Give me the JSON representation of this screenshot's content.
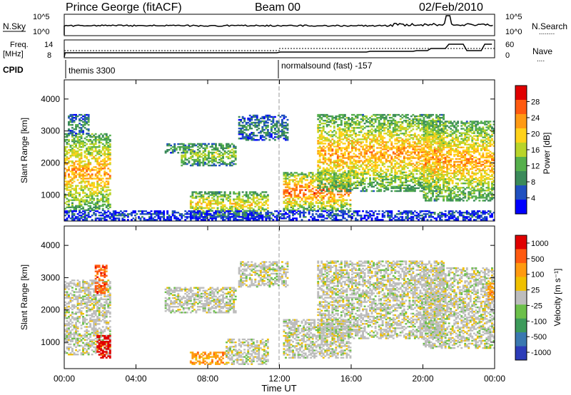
{
  "header": {
    "station": "Prince George (fitACF)",
    "beam": "Beam 00",
    "date": "02/Feb/2010"
  },
  "side_labels": {
    "nsky": "N.Sky",
    "nsearch": "N.Search",
    "freq": "Freq.",
    "freq_unit": "[MHz]",
    "nave": "Nave",
    "cpid": "CPID",
    "legend_dotted": "........",
    "legend_dotted2": "...."
  },
  "small_panels": {
    "nsky_ticks": [
      "10^5",
      "10^0"
    ],
    "nsearch_ticks": [
      "10^5",
      "10^0"
    ],
    "freq_ticks": [
      "14",
      "8"
    ],
    "nave_ticks": [
      "60",
      "0"
    ]
  },
  "cpid_labels": [
    {
      "text": "themis 3300"
    },
    {
      "text": "normalsound (fast) -157"
    }
  ],
  "colors": {
    "scale_power": [
      "#0000ff",
      "#2050c0",
      "#3b8a5a",
      "#56b04c",
      "#b9d42a",
      "#ffd21a",
      "#ff9a14",
      "#ff5a10",
      "#e00000"
    ],
    "scale_velocity": [
      "#2c3cb8",
      "#3a78b0",
      "#3c9a5a",
      "#6cc04a",
      "#bdbdbd",
      "#f0c000",
      "#ff9a10",
      "#ff5a10",
      "#e00000"
    ]
  },
  "chart_data": [
    {
      "type": "heatmap",
      "panel": "power",
      "xlabel": "",
      "ylabel": "Slant Range [km]",
      "ylim": [
        180,
        4600
      ],
      "xlim": [
        0,
        24
      ],
      "yticks": [
        "1000",
        "2000",
        "3000",
        "4000"
      ],
      "colorbar_label": "Power [dB]",
      "colorbar_ticks": [
        "4",
        "8",
        "12",
        "16",
        "20",
        "24",
        "28"
      ],
      "regions": [
        {
          "t0": 0.0,
          "t1": 2.6,
          "r0": 500,
          "r1": 2900,
          "level": 6
        },
        {
          "t0": 0.2,
          "t1": 1.4,
          "r0": 2900,
          "r1": 3500,
          "level": 2
        },
        {
          "t0": 5.6,
          "t1": 7.2,
          "r0": 2300,
          "r1": 2600,
          "level": 3
        },
        {
          "t0": 6.5,
          "t1": 9.5,
          "r0": 1900,
          "r1": 2600,
          "level": 4
        },
        {
          "t0": 7.0,
          "t1": 11.3,
          "r0": 300,
          "r1": 1100,
          "level": 5
        },
        {
          "t0": 9.7,
          "t1": 12.4,
          "r0": 2700,
          "r1": 3500,
          "level": 2
        },
        {
          "t0": 12.2,
          "t1": 15.9,
          "r0": 500,
          "r1": 1700,
          "level": 7
        },
        {
          "t0": 14.1,
          "t1": 21.2,
          "r0": 1100,
          "r1": 3500,
          "level": 6
        },
        {
          "t0": 20.0,
          "t1": 24.0,
          "r0": 800,
          "r1": 3300,
          "level": 6
        },
        {
          "t0": 0.0,
          "t1": 24.0,
          "r0": 200,
          "r1": 500,
          "level": 1
        }
      ]
    },
    {
      "type": "heatmap",
      "panel": "velocity",
      "xlabel": "Time UT",
      "ylabel": "Slant Range [km]",
      "ylim": [
        180,
        4600
      ],
      "xlim": [
        0,
        24
      ],
      "xticks": [
        "00:00",
        "04:00",
        "08:00",
        "12:00",
        "16:00",
        "20:00",
        "00:00"
      ],
      "yticks": [
        "1000",
        "2000",
        "3000",
        "4000"
      ],
      "colorbar_label": "Velocity [m s⁻¹]",
      "colorbar_ticks": [
        "1000",
        "500",
        "100",
        "25",
        "-25",
        "-100",
        "-500",
        "-1000"
      ],
      "regions": [
        {
          "t0": 0.0,
          "t1": 2.6,
          "r0": 600,
          "r1": 2900,
          "level": 4
        },
        {
          "t0": 1.8,
          "t1": 2.6,
          "r0": 500,
          "r1": 1200,
          "level": 8
        },
        {
          "t0": 1.7,
          "t1": 2.4,
          "r0": 2500,
          "r1": 3400,
          "level": 7
        },
        {
          "t0": 5.6,
          "t1": 9.5,
          "r0": 1900,
          "r1": 2700,
          "level": 4
        },
        {
          "t0": 7.0,
          "t1": 9.0,
          "r0": 300,
          "r1": 700,
          "level": 6
        },
        {
          "t0": 9.0,
          "t1": 11.3,
          "r0": 300,
          "r1": 1100,
          "level": 4
        },
        {
          "t0": 9.7,
          "t1": 12.4,
          "r0": 2700,
          "r1": 3500,
          "level": 4
        },
        {
          "t0": 12.2,
          "t1": 15.9,
          "r0": 500,
          "r1": 1700,
          "level": 4
        },
        {
          "t0": 14.1,
          "t1": 21.2,
          "r0": 1100,
          "r1": 3500,
          "level": 4
        },
        {
          "t0": 20.0,
          "t1": 24.0,
          "r0": 800,
          "r1": 3300,
          "level": 4
        },
        {
          "t0": 23.6,
          "t1": 24.0,
          "r0": 2300,
          "r1": 2800,
          "level": 6
        }
      ]
    }
  ]
}
